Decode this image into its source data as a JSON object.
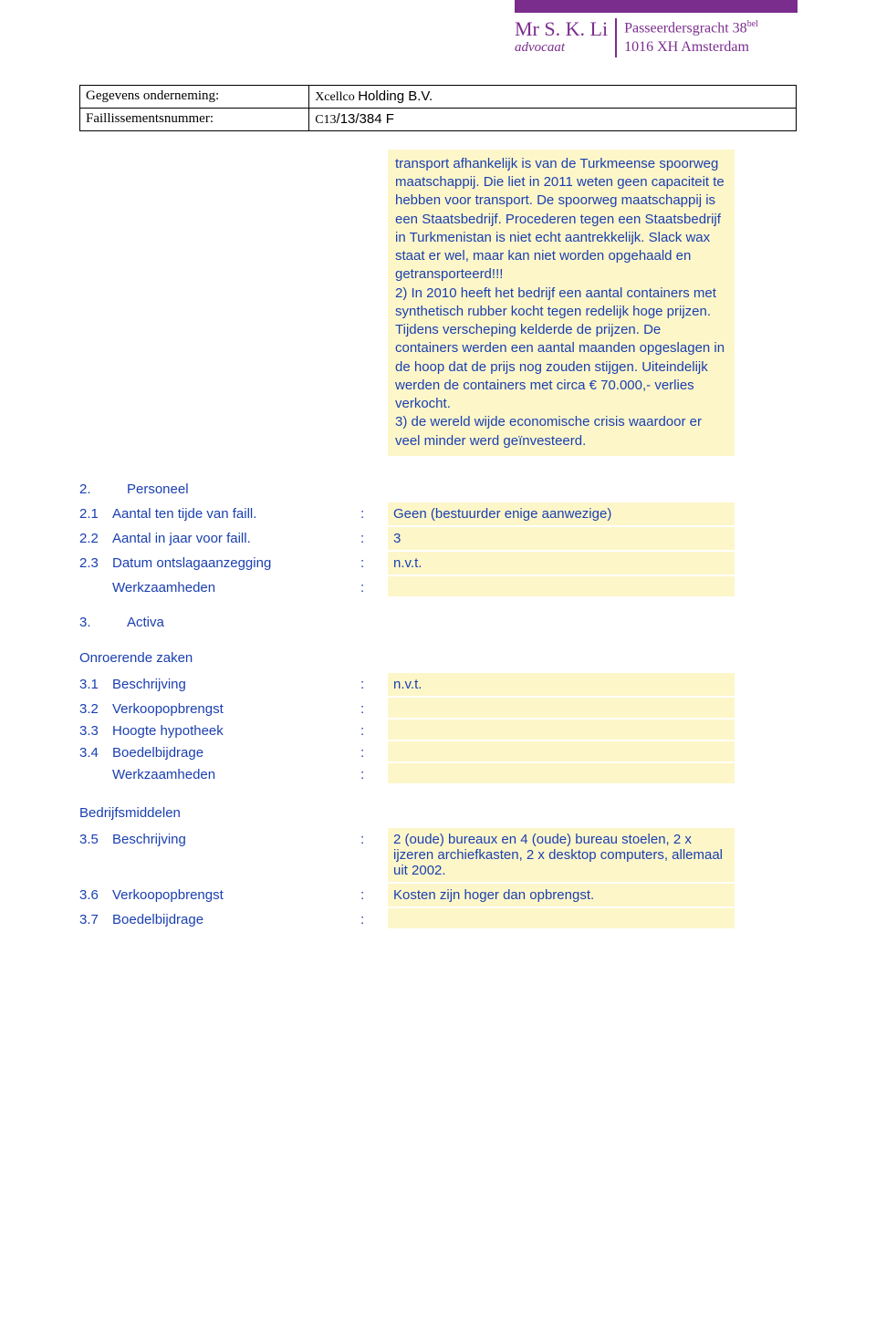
{
  "colors": {
    "purple": "#7b2d8e",
    "blue_text": "#1a3fb0",
    "yellow_bg": "#fdf6c9",
    "page_bg": "#ffffff"
  },
  "header": {
    "name": "Mr S. K. Li",
    "title": "advocaat",
    "addr1": "Passeerdersgracht 38",
    "addr1_sup": "bel",
    "addr2": "1016 XH  Amsterdam"
  },
  "meta": {
    "label1": "Gegevens onderneming:",
    "value1_prefix": "Xcellco ",
    "value1_rest": "Holding B.V.",
    "label2": "Faillissementsnummer:",
    "value2_prefix": "C13",
    "value2_rest": "/13/384 F"
  },
  "main_block": "transport afhankelijk is van de Turkmeense spoorweg maatschappij. Die liet in 2011 weten geen capaciteit te hebben voor transport. De spoorweg maatschappij is een Staatsbedrijf. Procederen tegen een Staatsbedrijf in Turkmenistan is niet echt aantrekkelijk. Slack wax staat er wel, maar kan niet worden opgehaald en getransporteerd!!!\n2) In 2010 heeft het bedrijf een aantal containers met synthetisch rubber kocht tegen redelijk hoge prijzen. Tijdens verscheping kelderde de prijzen. De containers werden een aantal maanden opgeslagen in de hoop dat de prijs nog zouden stijgen. Uiteindelijk werden de containers met circa € 70.000,- verlies verkocht.\n3) de wereld wijde economische crisis waardoor er veel minder werd geïnvesteerd.",
  "section2": {
    "num": "2.",
    "title": "Personeel",
    "items": [
      {
        "num": "2.1",
        "label": "Aantal ten tijde van faill.",
        "value": "Geen (bestuurder enige aanwezige)"
      },
      {
        "num": "2.2",
        "label": "Aantal in jaar voor faill.",
        "value": "3"
      },
      {
        "num": "2.3",
        "label": "Datum ontslagaanzegging",
        "value": "n.v.t."
      },
      {
        "num": "",
        "label": "Werkzaamheden",
        "value": ""
      }
    ]
  },
  "section3": {
    "num": "3.",
    "title": "Activa",
    "sub1": {
      "heading": "Onroerende zaken",
      "items": [
        {
          "num": "3.1",
          "label": "Beschrijving",
          "value": "n.v.t."
        },
        {
          "num": "3.2",
          "label": "Verkoopopbrengst",
          "value": ""
        },
        {
          "num": "3.3",
          "label": "Hoogte hypotheek",
          "value": ""
        },
        {
          "num": "3.4",
          "label": "Boedelbijdrage",
          "value": ""
        },
        {
          "num": "",
          "label": "Werkzaamheden",
          "value": ""
        }
      ]
    },
    "sub2": {
      "heading": "Bedrijfsmiddelen",
      "items": [
        {
          "num": "3.5",
          "label": "Beschrijving",
          "value": "2 (oude) bureaux en 4 (oude) bureau stoelen, 2 x ijzeren archiefkasten, 2 x desktop computers, allemaal uit 2002."
        },
        {
          "num": "3.6",
          "label": "Verkoopopbrengst",
          "value": "Kosten zijn hoger dan opbrengst."
        },
        {
          "num": "3.7",
          "label": "Boedelbijdrage",
          "value": ""
        }
      ]
    }
  }
}
